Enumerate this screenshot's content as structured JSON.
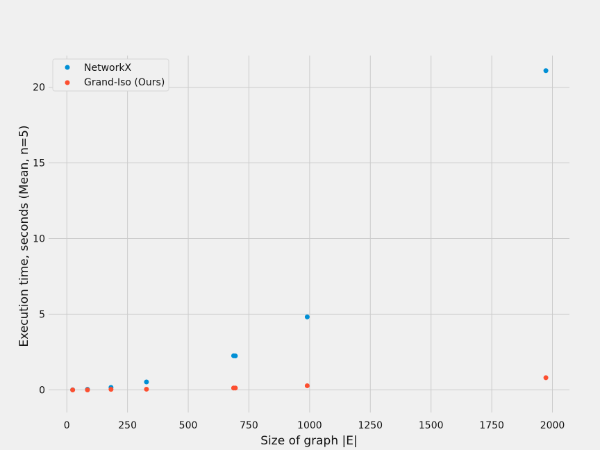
{
  "chart_data": {
    "type": "scatter",
    "title": "",
    "xlabel": "Size of graph |E|",
    "ylabel": "Execution time, seconds (Mean, n=5)",
    "xlim": [
      -75,
      2070
    ],
    "ylim": [
      -1.5,
      22.1
    ],
    "xticks": [
      0,
      250,
      500,
      750,
      1000,
      1250,
      1500,
      1750,
      2000
    ],
    "yticks": [
      0,
      5,
      10,
      15,
      20
    ],
    "grid": true,
    "legend_position": "top-left",
    "series": [
      {
        "name": "NetworkX",
        "color": "#008fd5",
        "points": [
          {
            "x": 24,
            "y": 0.0
          },
          {
            "x": 85,
            "y": 0.03
          },
          {
            "x": 182,
            "y": 0.16
          },
          {
            "x": 328,
            "y": 0.52
          },
          {
            "x": 687,
            "y": 2.25
          },
          {
            "x": 694,
            "y": 2.24
          },
          {
            "x": 990,
            "y": 4.82
          },
          {
            "x": 1973,
            "y": 21.1
          }
        ]
      },
      {
        "name": "Grand-Iso (Ours)",
        "color": "#fc4f30",
        "points": [
          {
            "x": 24,
            "y": -0.01
          },
          {
            "x": 85,
            "y": -0.01
          },
          {
            "x": 182,
            "y": 0.03
          },
          {
            "x": 328,
            "y": 0.04
          },
          {
            "x": 687,
            "y": 0.12
          },
          {
            "x": 694,
            "y": 0.12
          },
          {
            "x": 990,
            "y": 0.27
          },
          {
            "x": 1973,
            "y": 0.8
          }
        ]
      }
    ]
  }
}
